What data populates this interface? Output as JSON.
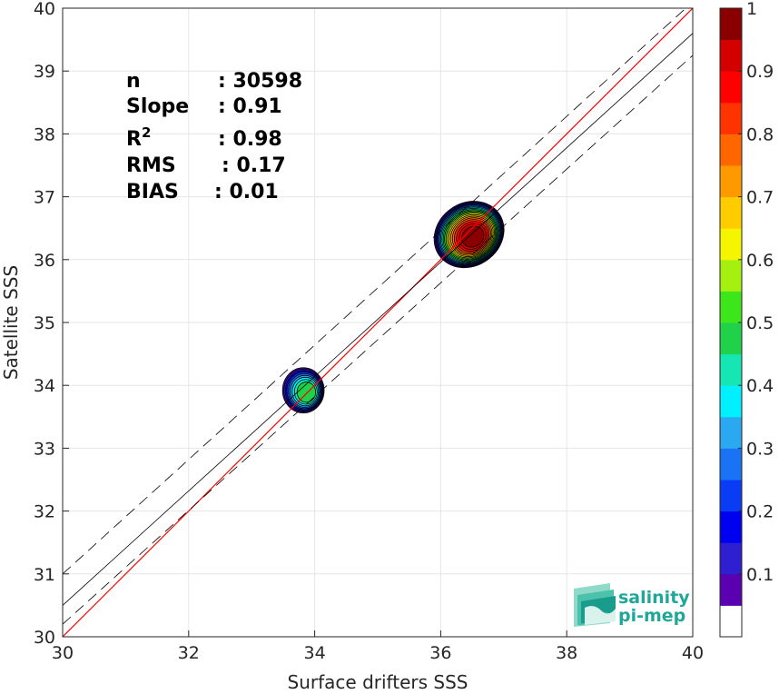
{
  "chart_data": {
    "type": "heatmap",
    "subtype": "scatter-density-contour",
    "xlabel": "Surface drifters SSS",
    "ylabel": "Satellite SSS",
    "xlim": [
      30,
      40
    ],
    "ylim": [
      30,
      40
    ],
    "xticks": [
      "30",
      "32",
      "34",
      "36",
      "38",
      "40"
    ],
    "yticks": [
      "30",
      "31",
      "32",
      "33",
      "34",
      "35",
      "36",
      "37",
      "38",
      "39",
      "40"
    ],
    "grid": true,
    "stats": [
      {
        "label": "n",
        "value": ": 30598"
      },
      {
        "label": "Slope",
        "value": ": 0.91"
      },
      {
        "label": "R",
        "sup": "2",
        "value": ": 0.98"
      },
      {
        "label": "RMS",
        "value": ": 0.17"
      },
      {
        "label": "BIAS",
        "value": ": 0.01"
      }
    ],
    "lines": [
      {
        "role": "one-to-one",
        "color": "#ff0000",
        "style": "solid",
        "points": [
          [
            30,
            30
          ],
          [
            40,
            40
          ]
        ]
      },
      {
        "role": "regression",
        "color": "#000000",
        "style": "solid",
        "points": [
          [
            30,
            30.5
          ],
          [
            40,
            39.6
          ]
        ]
      },
      {
        "role": "upper-bound",
        "color": "#000000",
        "style": "dashed",
        "points": [
          [
            30,
            31.0
          ],
          [
            40,
            40.1
          ]
        ]
      },
      {
        "role": "lower-bound",
        "color": "#000000",
        "style": "dashed",
        "points": [
          [
            30,
            30.2
          ],
          [
            40,
            39.25
          ]
        ]
      }
    ],
    "clusters": [
      {
        "center": [
          36.45,
          36.4
        ],
        "rx": 0.58,
        "ry": 0.5,
        "peak": 1.0,
        "rotation": -35
      },
      {
        "center": [
          33.82,
          33.92
        ],
        "rx": 0.33,
        "ry": 0.36,
        "peak": 0.5,
        "rotation": 0
      }
    ],
    "colorbar": {
      "range": [
        0,
        1
      ],
      "ticks": [
        "0.1",
        "0.2",
        "0.3",
        "0.4",
        "0.5",
        "0.6",
        "0.7",
        "0.8",
        "0.9",
        "1"
      ],
      "colors": [
        "#ffffff",
        "#5a00b0",
        "#2e1fd0",
        "#0000f0",
        "#0a3cf5",
        "#1a73f5",
        "#2aa8f0",
        "#00f0ff",
        "#15e6b4",
        "#1fd24a",
        "#3ce61a",
        "#a6f00f",
        "#f5f500",
        "#ffcc00",
        "#ff9900",
        "#ff6600",
        "#ff3300",
        "#ff0000",
        "#d40000",
        "#8a0000"
      ]
    }
  },
  "logo": {
    "line1": "salinity",
    "line2": "pi-mep",
    "color": "#1fa89a"
  }
}
